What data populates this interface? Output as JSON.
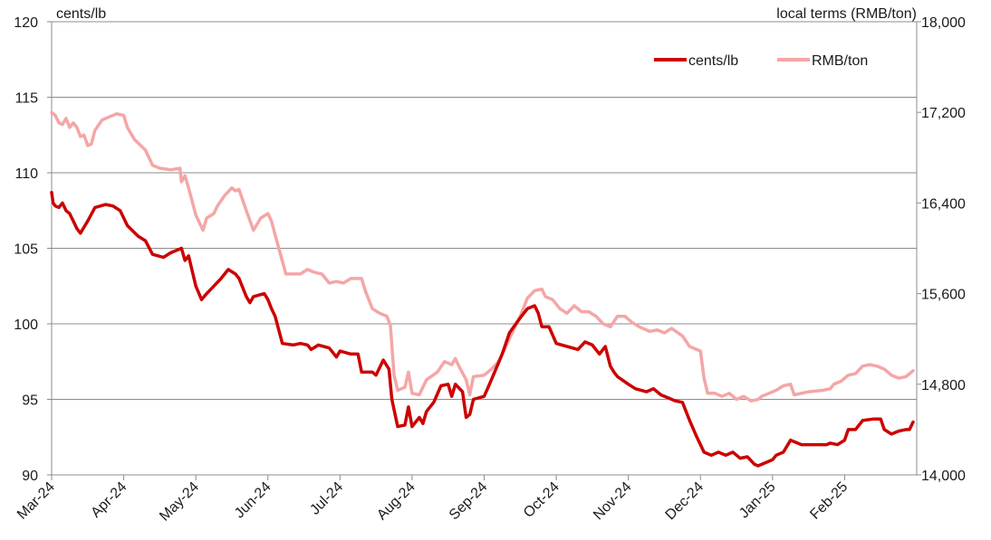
{
  "chart_data": {
    "type": "line",
    "x_labels": [
      "Mar-24",
      "Apr-24",
      "May-24",
      "Jun-24",
      "Jul-24",
      "Aug-24",
      "Sep-24",
      "Oct-24",
      "Nov-24",
      "Dec-24",
      "Jan-25",
      "Feb-25"
    ],
    "y_left": {
      "unit_label": "cents/lb",
      "lim": [
        90,
        120
      ],
      "ticks": [
        "90",
        "95",
        "100",
        "105",
        "110",
        "115",
        "120"
      ]
    },
    "y_right": {
      "unit_label": "local terms (RMB/ton)",
      "lim": [
        14000,
        18000
      ],
      "ticks": [
        "14,000",
        "14,800",
        "15,600",
        "16,400",
        "17,200",
        "18,000"
      ]
    },
    "grid": "horizontal",
    "legend": {
      "placement": "top-right"
    },
    "series": [
      {
        "name": "cents/lb",
        "axis": "left",
        "color": "#cc0000",
        "points": [
          [
            0,
            108.7
          ],
          [
            0.02,
            108.0
          ],
          [
            0.05,
            107.8
          ],
          [
            0.1,
            107.7
          ],
          [
            0.15,
            108.0
          ],
          [
            0.2,
            107.5
          ],
          [
            0.25,
            107.3
          ],
          [
            0.3,
            106.8
          ],
          [
            0.35,
            106.3
          ],
          [
            0.4,
            106.0
          ],
          [
            0.5,
            106.8
          ],
          [
            0.6,
            107.7
          ],
          [
            0.75,
            107.9
          ],
          [
            0.85,
            107.8
          ],
          [
            0.95,
            107.5
          ],
          [
            1.05,
            106.5
          ],
          [
            1.2,
            105.8
          ],
          [
            1.3,
            105.5
          ],
          [
            1.4,
            104.6
          ],
          [
            1.55,
            104.4
          ],
          [
            1.65,
            104.7
          ],
          [
            1.8,
            105.0
          ],
          [
            1.85,
            104.2
          ],
          [
            1.9,
            104.5
          ],
          [
            2.0,
            102.5
          ],
          [
            2.08,
            101.6
          ],
          [
            2.15,
            102.0
          ],
          [
            2.25,
            102.5
          ],
          [
            2.35,
            103.0
          ],
          [
            2.45,
            103.6
          ],
          [
            2.55,
            103.3
          ],
          [
            2.6,
            103.0
          ],
          [
            2.7,
            101.8
          ],
          [
            2.75,
            101.4
          ],
          [
            2.8,
            101.8
          ],
          [
            2.95,
            102.0
          ],
          [
            3.0,
            101.6
          ],
          [
            3.05,
            101.0
          ],
          [
            3.1,
            100.5
          ],
          [
            3.2,
            98.7
          ],
          [
            3.35,
            98.6
          ],
          [
            3.45,
            98.7
          ],
          [
            3.55,
            98.6
          ],
          [
            3.6,
            98.3
          ],
          [
            3.7,
            98.6
          ],
          [
            3.85,
            98.4
          ],
          [
            3.95,
            97.8
          ],
          [
            4.0,
            98.2
          ],
          [
            4.15,
            98.0
          ],
          [
            4.25,
            98.0
          ],
          [
            4.3,
            96.8
          ],
          [
            4.45,
            96.8
          ],
          [
            4.5,
            96.6
          ],
          [
            4.6,
            97.6
          ],
          [
            4.68,
            97.0
          ],
          [
            4.72,
            95.0
          ],
          [
            4.8,
            93.2
          ],
          [
            4.9,
            93.3
          ],
          [
            4.95,
            94.5
          ],
          [
            5.0,
            93.2
          ],
          [
            5.1,
            93.8
          ],
          [
            5.15,
            93.4
          ],
          [
            5.2,
            94.2
          ],
          [
            5.3,
            94.8
          ],
          [
            5.4,
            95.9
          ],
          [
            5.5,
            96.0
          ],
          [
            5.55,
            95.2
          ],
          [
            5.6,
            96.0
          ],
          [
            5.7,
            95.5
          ],
          [
            5.75,
            93.8
          ],
          [
            5.8,
            94.0
          ],
          [
            5.85,
            95.0
          ],
          [
            6.0,
            95.2
          ],
          [
            6.1,
            96.3
          ],
          [
            6.25,
            98.0
          ],
          [
            6.35,
            99.4
          ],
          [
            6.5,
            100.4
          ],
          [
            6.6,
            101.0
          ],
          [
            6.7,
            101.2
          ],
          [
            6.75,
            100.7
          ],
          [
            6.8,
            99.8
          ],
          [
            6.9,
            99.8
          ],
          [
            7.0,
            98.7
          ],
          [
            7.15,
            98.5
          ],
          [
            7.3,
            98.3
          ],
          [
            7.4,
            98.8
          ],
          [
            7.5,
            98.6
          ],
          [
            7.6,
            98.0
          ],
          [
            7.68,
            98.5
          ],
          [
            7.75,
            97.2
          ],
          [
            7.8,
            96.8
          ],
          [
            7.85,
            96.5
          ],
          [
            8.0,
            96.0
          ],
          [
            8.1,
            95.7
          ],
          [
            8.25,
            95.5
          ],
          [
            8.35,
            95.7
          ],
          [
            8.45,
            95.3
          ],
          [
            8.55,
            95.1
          ],
          [
            8.65,
            94.9
          ],
          [
            8.75,
            94.8
          ],
          [
            8.85,
            93.6
          ],
          [
            8.95,
            92.5
          ],
          [
            9.05,
            91.5
          ],
          [
            9.15,
            91.3
          ],
          [
            9.25,
            91.5
          ],
          [
            9.35,
            91.3
          ],
          [
            9.45,
            91.5
          ],
          [
            9.55,
            91.1
          ],
          [
            9.65,
            91.2
          ],
          [
            9.75,
            90.7
          ],
          [
            9.8,
            90.6
          ],
          [
            9.9,
            90.8
          ],
          [
            10.0,
            91.0
          ],
          [
            10.05,
            91.3
          ],
          [
            10.15,
            91.5
          ],
          [
            10.25,
            92.3
          ],
          [
            10.4,
            92.0
          ],
          [
            10.6,
            92.0
          ],
          [
            10.75,
            92.0
          ],
          [
            10.8,
            92.1
          ],
          [
            10.9,
            92.0
          ],
          [
            11.0,
            92.3
          ],
          [
            11.05,
            93.0
          ],
          [
            11.15,
            93.0
          ],
          [
            11.25,
            93.6
          ],
          [
            11.4,
            93.7
          ],
          [
            11.5,
            93.7
          ],
          [
            11.55,
            93.0
          ],
          [
            11.65,
            92.7
          ],
          [
            11.75,
            92.9
          ],
          [
            11.85,
            93.0
          ],
          [
            11.9,
            93.0
          ],
          [
            11.95,
            93.5
          ]
        ]
      },
      {
        "name": "RMB/ton",
        "axis": "left",
        "color": "#f4a6a6",
        "points": [
          [
            0,
            114.0
          ],
          [
            0.05,
            113.8
          ],
          [
            0.1,
            113.3
          ],
          [
            0.15,
            113.2
          ],
          [
            0.2,
            113.6
          ],
          [
            0.25,
            113.0
          ],
          [
            0.3,
            113.3
          ],
          [
            0.35,
            113.0
          ],
          [
            0.4,
            112.4
          ],
          [
            0.45,
            112.5
          ],
          [
            0.5,
            111.8
          ],
          [
            0.55,
            111.9
          ],
          [
            0.6,
            112.8
          ],
          [
            0.7,
            113.5
          ],
          [
            0.8,
            113.7
          ],
          [
            0.9,
            113.9
          ],
          [
            1.0,
            113.8
          ],
          [
            1.05,
            113.0
          ],
          [
            1.15,
            112.2
          ],
          [
            1.3,
            111.5
          ],
          [
            1.4,
            110.5
          ],
          [
            1.5,
            110.3
          ],
          [
            1.65,
            110.2
          ],
          [
            1.78,
            110.3
          ],
          [
            1.8,
            109.4
          ],
          [
            1.85,
            109.8
          ],
          [
            1.9,
            109.0
          ],
          [
            2.0,
            107.2
          ],
          [
            2.1,
            106.2
          ],
          [
            2.15,
            107.0
          ],
          [
            2.25,
            107.3
          ],
          [
            2.3,
            107.8
          ],
          [
            2.4,
            108.5
          ],
          [
            2.5,
            109.0
          ],
          [
            2.55,
            108.8
          ],
          [
            2.6,
            108.9
          ],
          [
            2.7,
            107.5
          ],
          [
            2.8,
            106.2
          ],
          [
            2.9,
            107.0
          ],
          [
            3.0,
            107.3
          ],
          [
            3.05,
            106.8
          ],
          [
            3.1,
            105.9
          ],
          [
            3.25,
            103.3
          ],
          [
            3.45,
            103.3
          ],
          [
            3.55,
            103.6
          ],
          [
            3.65,
            103.4
          ],
          [
            3.75,
            103.3
          ],
          [
            3.85,
            102.7
          ],
          [
            3.95,
            102.8
          ],
          [
            4.05,
            102.7
          ],
          [
            4.15,
            103.0
          ],
          [
            4.3,
            103.0
          ],
          [
            4.35,
            102.2
          ],
          [
            4.45,
            101.0
          ],
          [
            4.55,
            100.7
          ],
          [
            4.65,
            100.5
          ],
          [
            4.7,
            99.9
          ],
          [
            4.75,
            96.6
          ],
          [
            4.8,
            95.6
          ],
          [
            4.9,
            95.8
          ],
          [
            4.95,
            96.8
          ],
          [
            5.0,
            95.4
          ],
          [
            5.1,
            95.3
          ],
          [
            5.2,
            96.3
          ],
          [
            5.35,
            96.8
          ],
          [
            5.45,
            97.5
          ],
          [
            5.55,
            97.3
          ],
          [
            5.6,
            97.7
          ],
          [
            5.65,
            97.2
          ],
          [
            5.75,
            96.3
          ],
          [
            5.8,
            95.3
          ],
          [
            5.85,
            96.5
          ],
          [
            6.0,
            96.6
          ],
          [
            6.1,
            97.0
          ],
          [
            6.2,
            97.5
          ],
          [
            6.3,
            98.5
          ],
          [
            6.4,
            99.5
          ],
          [
            6.5,
            100.5
          ],
          [
            6.6,
            101.7
          ],
          [
            6.7,
            102.2
          ],
          [
            6.8,
            102.3
          ],
          [
            6.85,
            101.8
          ],
          [
            6.95,
            101.6
          ],
          [
            7.05,
            101.0
          ],
          [
            7.15,
            100.7
          ],
          [
            7.25,
            101.2
          ],
          [
            7.35,
            100.8
          ],
          [
            7.45,
            100.8
          ],
          [
            7.55,
            100.5
          ],
          [
            7.65,
            100.0
          ],
          [
            7.75,
            99.8
          ],
          [
            7.85,
            100.5
          ],
          [
            7.95,
            100.5
          ],
          [
            8.05,
            100.1
          ],
          [
            8.15,
            99.8
          ],
          [
            8.3,
            99.5
          ],
          [
            8.4,
            99.6
          ],
          [
            8.5,
            99.4
          ],
          [
            8.6,
            99.7
          ],
          [
            8.75,
            99.2
          ],
          [
            8.85,
            98.5
          ],
          [
            9.0,
            98.2
          ],
          [
            9.05,
            96.4
          ],
          [
            9.1,
            95.4
          ],
          [
            9.2,
            95.4
          ],
          [
            9.3,
            95.2
          ],
          [
            9.4,
            95.4
          ],
          [
            9.5,
            95.0
          ],
          [
            9.6,
            95.2
          ],
          [
            9.7,
            94.9
          ],
          [
            9.8,
            95.0
          ],
          [
            9.85,
            95.2
          ],
          [
            9.95,
            95.4
          ],
          [
            10.05,
            95.6
          ],
          [
            10.15,
            95.9
          ],
          [
            10.25,
            96.0
          ],
          [
            10.3,
            95.3
          ],
          [
            10.5,
            95.5
          ],
          [
            10.7,
            95.6
          ],
          [
            10.8,
            95.7
          ],
          [
            10.85,
            96.0
          ],
          [
            10.95,
            96.2
          ],
          [
            11.05,
            96.6
          ],
          [
            11.15,
            96.7
          ],
          [
            11.25,
            97.2
          ],
          [
            11.35,
            97.3
          ],
          [
            11.45,
            97.2
          ],
          [
            11.55,
            97.0
          ],
          [
            11.65,
            96.6
          ],
          [
            11.75,
            96.4
          ],
          [
            11.85,
            96.5
          ],
          [
            11.95,
            96.9
          ]
        ]
      }
    ]
  }
}
